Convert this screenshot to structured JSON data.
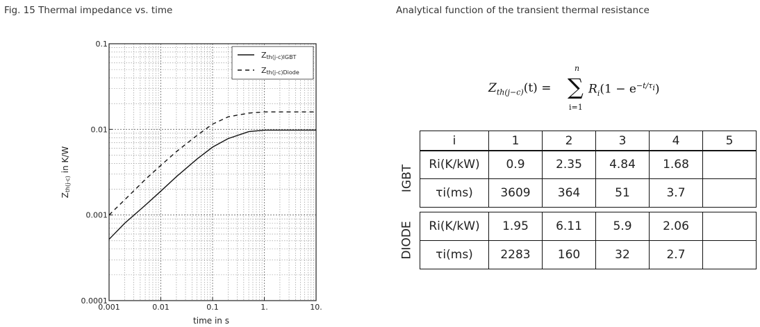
{
  "fig_title": "Fig. 15  Thermal impedance vs. time",
  "right_title": "Analytical function of the transient thermal resistance",
  "formula": {
    "lhs": "Z",
    "lhs_sub": "th(j−c)",
    "lhs_tail": "(t) =",
    "sum_symbol": "∑",
    "upper": "n",
    "lower": "i=1",
    "rhs": "R",
    "rhs_sub": "i",
    "rhs_tail": "(1 − e",
    "exp": "−t/τ",
    "exp_sub": "i",
    "close": ")"
  },
  "chart_data": {
    "type": "line",
    "xlabel": "time in s",
    "ylabel": "Z",
    "ylabel_sub": "th(j-c)",
    "ylabel_tail": " in K/W",
    "x_scale": "log",
    "y_scale": "log",
    "xlim": [
      0.001,
      10
    ],
    "ylim": [
      0.0001,
      0.1
    ],
    "x_ticks": [
      "0.001",
      "0.01",
      "0.1",
      "1.",
      "10."
    ],
    "y_ticks": [
      "0.0001",
      "0.001",
      "0.01",
      "0.1"
    ],
    "grid": true,
    "legend_position": "top-right",
    "series": [
      {
        "name": "Zth(j-c)IGBT",
        "legend_main": "Z",
        "legend_sub": "th(j-c)IGBT",
        "style": "solid",
        "x": [
          0.001,
          0.002,
          0.005,
          0.01,
          0.02,
          0.05,
          0.1,
          0.2,
          0.5,
          1,
          2,
          5,
          10
        ],
        "y": [
          0.00052,
          0.0008,
          0.0013,
          0.0019,
          0.0028,
          0.0045,
          0.0062,
          0.0078,
          0.0094,
          0.0098,
          0.0098,
          0.0098,
          0.0098
        ]
      },
      {
        "name": "Zth(j-c)Diode",
        "legend_main": "Z",
        "legend_sub": "th(j-c)Diode",
        "style": "dashed",
        "x": [
          0.001,
          0.002,
          0.005,
          0.01,
          0.02,
          0.05,
          0.1,
          0.2,
          0.5,
          1,
          2,
          5,
          10
        ],
        "y": [
          0.001,
          0.0015,
          0.0026,
          0.0038,
          0.0055,
          0.0085,
          0.0115,
          0.014,
          0.0155,
          0.016,
          0.016,
          0.016,
          0.016
        ]
      }
    ]
  },
  "table": {
    "header": [
      "i",
      "1",
      "2",
      "3",
      "4",
      "5"
    ],
    "groups": [
      {
        "name": "IGBT",
        "rows": [
          {
            "label": "Ri(K/kW)",
            "values": [
              "0.9",
              "2.35",
              "4.84",
              "1.68",
              ""
            ]
          },
          {
            "label": "τi(ms)",
            "values": [
              "3609",
              "364",
              "51",
              "3.7",
              ""
            ]
          }
        ]
      },
      {
        "name": "DIODE",
        "rows": [
          {
            "label": "Ri(K/kW)",
            "values": [
              "1.95",
              "6.11",
              "5.9",
              "2.06",
              ""
            ]
          },
          {
            "label": "τi(ms)",
            "values": [
              "2283",
              "160",
              "32",
              "2.7",
              ""
            ]
          }
        ]
      }
    ]
  }
}
